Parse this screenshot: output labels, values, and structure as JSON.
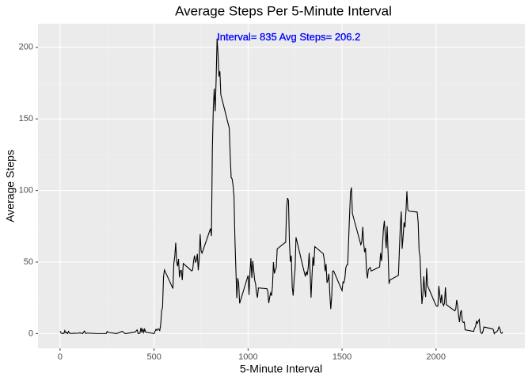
{
  "chart_data": {
    "type": "line",
    "title": "Average Steps Per 5-Minute Interval",
    "x_label": "5-Minute Interval",
    "y_label": "Average Steps",
    "annotation": "Interval= 835   Avg Steps= 206.2",
    "annotation_x": 835,
    "annotation_y": 206.2,
    "annotation_color": "#0000ff",
    "color": "#000000",
    "grid": true,
    "xlim": [
      -117.75,
      2472.75
    ],
    "ylim": [
      -10.3,
      216.5
    ],
    "xticks": [
      0,
      500,
      1000,
      1500,
      2000
    ],
    "yticks": [
      0,
      50,
      100,
      150,
      200
    ],
    "x": [
      0,
      5,
      10,
      15,
      20,
      25,
      30,
      35,
      40,
      45,
      50,
      55,
      100,
      105,
      110,
      115,
      120,
      125,
      130,
      135,
      140,
      145,
      150,
      200,
      230,
      245,
      250,
      255,
      300,
      330,
      345,
      350,
      400,
      410,
      415,
      425,
      430,
      435,
      440,
      445,
      450,
      455,
      500,
      505,
      510,
      515,
      520,
      525,
      530,
      535,
      540,
      545,
      550,
      555,
      600,
      605,
      610,
      615,
      620,
      625,
      630,
      635,
      640,
      645,
      650,
      655,
      700,
      705,
      710,
      715,
      720,
      725,
      730,
      735,
      740,
      745,
      750,
      755,
      800,
      805,
      810,
      815,
      820,
      825,
      830,
      835,
      840,
      845,
      850,
      855,
      900,
      905,
      910,
      915,
      920,
      925,
      930,
      935,
      940,
      945,
      950,
      955,
      1000,
      1005,
      1010,
      1015,
      1020,
      1025,
      1030,
      1035,
      1040,
      1045,
      1050,
      1055,
      1100,
      1105,
      1110,
      1115,
      1120,
      1125,
      1130,
      1135,
      1140,
      1145,
      1150,
      1155,
      1200,
      1205,
      1210,
      1215,
      1220,
      1225,
      1230,
      1235,
      1240,
      1245,
      1250,
      1255,
      1300,
      1305,
      1310,
      1315,
      1320,
      1325,
      1330,
      1335,
      1340,
      1345,
      1350,
      1355,
      1400,
      1405,
      1410,
      1415,
      1420,
      1425,
      1430,
      1435,
      1440,
      1445,
      1450,
      1455,
      1500,
      1505,
      1510,
      1515,
      1520,
      1525,
      1530,
      1535,
      1540,
      1545,
      1550,
      1555,
      1600,
      1605,
      1610,
      1615,
      1620,
      1625,
      1630,
      1635,
      1640,
      1645,
      1650,
      1655,
      1700,
      1705,
      1710,
      1715,
      1720,
      1725,
      1730,
      1735,
      1740,
      1745,
      1750,
      1755,
      1800,
      1805,
      1810,
      1815,
      1820,
      1825,
      1830,
      1835,
      1840,
      1845,
      1850,
      1855,
      1900,
      1905,
      1910,
      1915,
      1920,
      1925,
      1930,
      1935,
      1940,
      1945,
      1950,
      1955,
      2000,
      2005,
      2010,
      2015,
      2020,
      2025,
      2030,
      2035,
      2040,
      2045,
      2050,
      2055,
      2100,
      2105,
      2110,
      2115,
      2120,
      2125,
      2130,
      2135,
      2140,
      2145,
      2150,
      2155,
      2200,
      2205,
      2210,
      2215,
      2220,
      2225,
      2230,
      2235,
      2240,
      2245,
      2250,
      2255,
      2300,
      2305,
      2310,
      2315,
      2320,
      2325,
      2330,
      2335,
      2340,
      2345,
      2350,
      2355
    ],
    "values": [
      1.7,
      0.3,
      0.1,
      0.2,
      0.1,
      2.1,
      0.5,
      0.9,
      0,
      1.5,
      0.3,
      0.1,
      0.3,
      0.7,
      0.2,
      0.3,
      0,
      1.1,
      1.8,
      0.2,
      0.2,
      0.4,
      0.3,
      0,
      0,
      0,
      1.5,
      0.9,
      0,
      1.6,
      0.1,
      0,
      1.2,
      2.6,
      0,
      0.4,
      4.1,
      0.7,
      3.5,
      0.8,
      3.1,
      1.1,
      0,
      1.6,
      3,
      2.2,
      3.3,
      3,
      2.1,
      6.1,
      16,
      18.3,
      39.5,
      44.5,
      31.5,
      49.3,
      53.8,
      63.5,
      50,
      47.1,
      52.2,
      39.3,
      44,
      44.2,
      37.4,
      49,
      43.8,
      44.4,
      50.5,
      54.5,
      49.9,
      51,
      55.7,
      44.3,
      52.3,
      69.5,
      57.8,
      56.2,
      73.4,
      68.2,
      129.4,
      157.5,
      171.2,
      155.4,
      177.3,
      206.2,
      195.9,
      179.6,
      183.4,
      167,
      143.5,
      124,
      109.1,
      108.1,
      103.7,
      96,
      66.2,
      45.2,
      24.8,
      38.8,
      34.98,
      21.1,
      40.6,
      27,
      42.4,
      52.7,
      38.9,
      50.8,
      44.3,
      37.4,
      34.7,
      28.3,
      25.1,
      31.9,
      31.4,
      29.7,
      21.3,
      25.5,
      28.4,
      26.5,
      33.4,
      49.98,
      42,
      44.6,
      46,
      59.2,
      63.9,
      87.7,
      94.8,
      92.8,
      63.4,
      50.2,
      54.5,
      32.4,
      26.5,
      37.7,
      45.1,
      67.3,
      42.3,
      39.9,
      43.3,
      40.98,
      46.2,
      56.4,
      42.8,
      25.1,
      39.97,
      53.5,
      47.3,
      60.8,
      55.8,
      51.96,
      43.6,
      48.7,
      35.5,
      37.5,
      41.8,
      27.5,
      17.1,
      26.1,
      43.6,
      43.8,
      30,
      36.1,
      35.5,
      38.8,
      45.96,
      47.8,
      48.1,
      65.3,
      82.9,
      98.7,
      102.1,
      83.96,
      62.1,
      64.1,
      74.5,
      63.2,
      56.9,
      59.8,
      43.9,
      38.6,
      44.7,
      45.5,
      46.2,
      43.7,
      46.6,
      56.3,
      50.7,
      61.2,
      72.7,
      78.9,
      68.9,
      59.7,
      75.1,
      56.5,
      34.8,
      37.5,
      40.7,
      58,
      74.7,
      85.3,
      59.3,
      67.8,
      77.7,
      74.2,
      85.3,
      99.5,
      86.6,
      85.6,
      84.9,
      77.8,
      58,
      53.4,
      36.3,
      20.7,
      27.4,
      40,
      30.2,
      25.5,
      45.7,
      33.5,
      19.6,
      19,
      19.3,
      33.3,
      26.8,
      21.2,
      27.3,
      21.3,
      19.5,
      21.3,
      32.3,
      20.2,
      15.9,
      17.2,
      23.5,
      19.2,
      12.5,
      8,
      14.7,
      16.3,
      8.7,
      7.8,
      8.1,
      2.6,
      1.5,
      3.7,
      4.8,
      8.5,
      7.1,
      8.7,
      9.8,
      2.2,
      0.3,
      0.1,
      1.6,
      4.6,
      3.3,
      2.8,
      0,
      0.8,
      1,
      1.6,
      2.6,
      4.7,
      3.3,
      0.6,
      0.2,
      1.1
    ]
  }
}
